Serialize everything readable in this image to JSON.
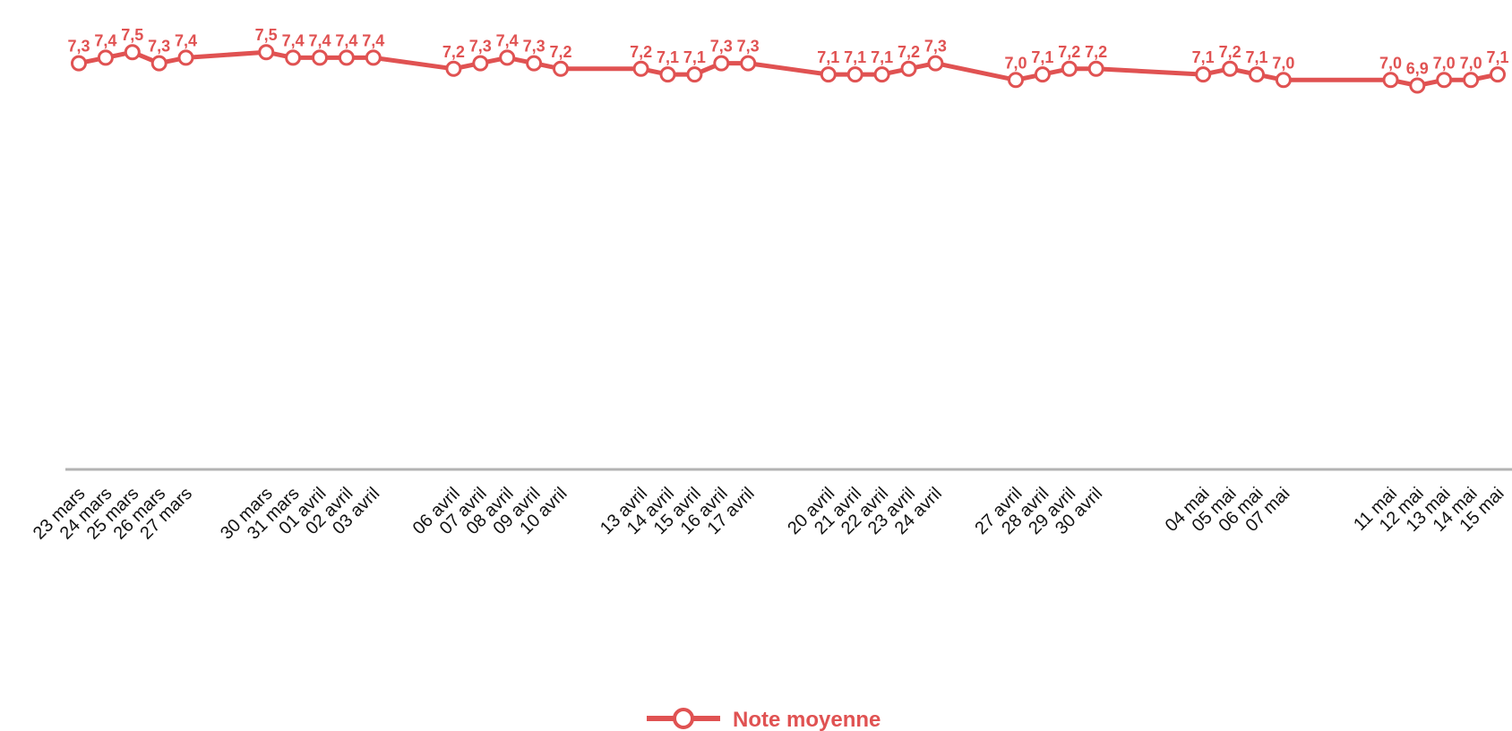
{
  "chart_data": {
    "type": "line",
    "title": "",
    "xlabel": "",
    "ylabel": "",
    "ylim": [
      0,
      7.6
    ],
    "grid": false,
    "legend_position": "bottom-center",
    "colors": {
      "series": "#E05252",
      "axis": "#B3B3B3",
      "marker_fill": "#ffffff"
    },
    "categories": [
      "23 mars",
      "24 mars",
      "25 mars",
      "26 mars",
      "27 mars",
      "30 mars",
      "31 mars",
      "01 avril",
      "02 avril",
      "03 avril",
      "06 avril",
      "07 avril",
      "08 avril",
      "09 avril",
      "10 avril",
      "13 avril",
      "14 avril",
      "15 avril",
      "16 avril",
      "17 avril",
      "20 avril",
      "21 avril",
      "22 avril",
      "23 avril",
      "24 avril",
      "27 avril",
      "28 avril",
      "29 avril",
      "30 avril",
      "04 mai",
      "05 mai",
      "06 mai",
      "07 mai",
      "11 mai",
      "12 mai",
      "13 mai",
      "14 mai",
      "15 mai"
    ],
    "series": [
      {
        "name": "Note moyenne",
        "values": [
          7.3,
          7.4,
          7.5,
          7.3,
          7.4,
          7.5,
          7.4,
          7.4,
          7.4,
          7.4,
          7.2,
          7.3,
          7.4,
          7.3,
          7.2,
          7.2,
          7.1,
          7.1,
          7.3,
          7.3,
          7.1,
          7.1,
          7.1,
          7.2,
          7.3,
          7.0,
          7.1,
          7.2,
          7.2,
          7.1,
          7.2,
          7.1,
          7.0,
          7.0,
          6.9,
          7.0,
          7.0,
          7.1
        ],
        "labels": [
          "7,3",
          "7,4",
          "7,5",
          "7,3",
          "7,4",
          "7,5",
          "7,4",
          "7,4",
          "7,4",
          "7,4",
          "7,2",
          "7,3",
          "7,4",
          "7,3",
          "7,2",
          "7,2",
          "7,1",
          "7,1",
          "7,3",
          "7,3",
          "7,1",
          "7,1",
          "7,1",
          "7,2",
          "7,3",
          "7,0",
          "7,1",
          "7,2",
          "7,2",
          "7,1",
          "7,2",
          "7,1",
          "7,0",
          "7,0",
          "6,9",
          "7,0",
          "7,0",
          "7,1"
        ]
      }
    ],
    "legend": {
      "label": "Note moyenne",
      "marker": "line-with-circle"
    }
  }
}
